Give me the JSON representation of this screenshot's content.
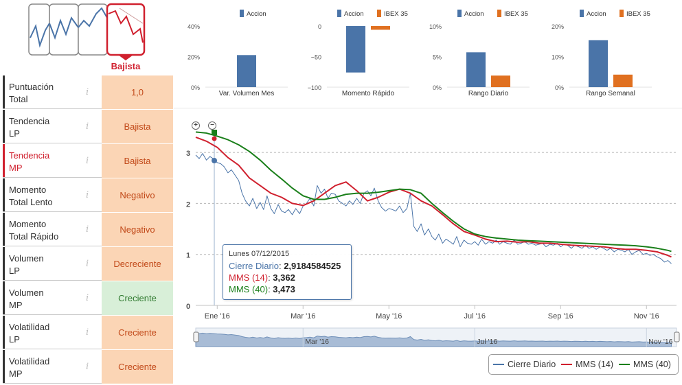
{
  "colors": {
    "accion": "#4a74a8",
    "ibex": "#e07020",
    "red": "#d0202e",
    "green": "#1a7f1a",
    "negative_bg": "#fbd5b5",
    "positive_bg": "#d8efd8"
  },
  "trend_selector": {
    "active_label": "Bajista",
    "icons": [
      "trend-up-icon",
      "trend-zigzag-icon",
      "trend-flat-icon",
      "trend-down-icon"
    ]
  },
  "metrics": [
    {
      "label_line1": "Puntuación",
      "label_line2": "Total",
      "value": "1,0",
      "tone": "negative",
      "active": false
    },
    {
      "label_line1": "Tendencia",
      "label_line2": "LP",
      "value": "Bajista",
      "tone": "negative",
      "active": false
    },
    {
      "label_line1": "Tendencia",
      "label_line2": "MP",
      "value": "Bajista",
      "tone": "negative",
      "active": true
    },
    {
      "label_line1": "Momento",
      "label_line2": "Total Lento",
      "value": "Negativo",
      "tone": "negative",
      "active": false
    },
    {
      "label_line1": "Momento",
      "label_line2": "Total Rápido",
      "value": "Negativo",
      "tone": "negative",
      "active": false
    },
    {
      "label_line1": "Volumen",
      "label_line2": "LP",
      "value": "Decreciente",
      "tone": "negative",
      "active": false
    },
    {
      "label_line1": "Volumen",
      "label_line2": "MP",
      "value": "Creciente",
      "tone": "positive",
      "active": false
    },
    {
      "label_line1": "Volatilidad",
      "label_line2": "LP",
      "value": "Creciente",
      "tone": "negative",
      "active": false
    },
    {
      "label_line1": "Volatilidad",
      "label_line2": "MP",
      "value": "Creciente",
      "tone": "negative",
      "active": false
    }
  ],
  "tooltip": {
    "date": "Lunes 07/12/2015",
    "cierre_label": "Cierre Diario",
    "cierre_value": "2,9184584525",
    "mms14_label": "MMS (14)",
    "mms14_value": "3,362",
    "mms40_label": "MMS (40)",
    "mms40_value": "3,473"
  },
  "legend": {
    "items": [
      {
        "label": "Cierre Diario",
        "color": "#4a74a8"
      },
      {
        "label": "MMS (14)",
        "color": "#d0202e"
      },
      {
        "label": "MMS (40)",
        "color": "#1a7f1a"
      }
    ]
  },
  "chart_data": [
    {
      "type": "bar",
      "title": "Var. Volumen Mes",
      "legend": [
        "Accion"
      ],
      "yticks": [
        "40%",
        "20%",
        "0%"
      ],
      "ylim": [
        0,
        40
      ],
      "series": [
        {
          "name": "Accion",
          "values": [
            21
          ]
        }
      ]
    },
    {
      "type": "bar",
      "title": "Momento Rápido",
      "legend": [
        "Accion",
        "IBEX 35"
      ],
      "yticks": [
        "0",
        "−50",
        "−100"
      ],
      "ylim": [
        -100,
        0
      ],
      "series": [
        {
          "name": "Accion",
          "values": [
            -76
          ]
        },
        {
          "name": "IBEX 35",
          "values": [
            -6
          ]
        }
      ]
    },
    {
      "type": "bar",
      "title": "Rango Diario",
      "legend": [
        "Accion",
        "IBEX 35"
      ],
      "yticks": [
        "10%",
        "5%",
        "0%"
      ],
      "ylim": [
        0,
        10
      ],
      "series": [
        {
          "name": "Accion",
          "values": [
            5.7
          ]
        },
        {
          "name": "IBEX 35",
          "values": [
            1.9
          ]
        }
      ]
    },
    {
      "type": "bar",
      "title": "Rango Semanal",
      "legend": [
        "Accion",
        "IBEX 35"
      ],
      "yticks": [
        "20%",
        "10%",
        "0%"
      ],
      "ylim": [
        0,
        20
      ],
      "series": [
        {
          "name": "Accion",
          "values": [
            15.4
          ]
        },
        {
          "name": "IBEX 35",
          "values": [
            4.1
          ]
        }
      ]
    },
    {
      "type": "line",
      "title": "",
      "xlabel": "",
      "ylabel": "",
      "ylim": [
        0,
        3.5
      ],
      "yticks": [
        "3",
        "2",
        "1",
        "0"
      ],
      "x_ticks": [
        "Ene '16",
        "Mar '16",
        "May '16",
        "Jul '16",
        "Sep '16",
        "Nov '16"
      ],
      "x_ticks_pos": [
        1,
        3,
        5,
        7,
        9,
        11
      ],
      "x_range": [
        0.5,
        11.7
      ],
      "navigator_labels": [
        "Mar '16",
        "Jul '16",
        "Nov '16"
      ],
      "navigator_labels_pos": [
        3,
        7,
        11
      ],
      "series": [
        {
          "name": "Cierre Diario",
          "x": [
            0.5,
            0.58,
            0.66,
            0.75,
            0.83,
            0.92,
            1.0,
            1.08,
            1.16,
            1.25,
            1.33,
            1.42,
            1.5,
            1.58,
            1.66,
            1.75,
            1.83,
            1.92,
            2.0,
            2.08,
            2.16,
            2.25,
            2.33,
            2.42,
            2.5,
            2.58,
            2.66,
            2.75,
            2.83,
            2.92,
            3.0,
            3.08,
            3.16,
            3.25,
            3.33,
            3.42,
            3.5,
            3.58,
            3.66,
            3.75,
            3.83,
            3.92,
            4.0,
            4.08,
            4.16,
            4.25,
            4.33,
            4.42,
            4.5,
            4.58,
            4.66,
            4.75,
            4.83,
            4.92,
            5.0,
            5.08,
            5.16,
            5.25,
            5.33,
            5.42,
            5.5,
            5.58,
            5.66,
            5.75,
            5.83,
            5.92,
            6.0,
            6.08,
            6.16,
            6.25,
            6.33,
            6.42,
            6.5,
            6.58,
            6.66,
            6.75,
            6.83,
            6.92,
            7.0,
            7.08,
            7.16,
            7.25,
            7.33,
            7.42,
            7.5,
            7.58,
            7.66,
            7.75,
            7.83,
            7.92,
            8.0,
            8.08,
            8.16,
            8.25,
            8.33,
            8.42,
            8.5,
            8.58,
            8.66,
            8.75,
            8.83,
            8.92,
            9.0,
            9.08,
            9.16,
            9.25,
            9.33,
            9.42,
            9.5,
            9.58,
            9.66,
            9.75,
            9.83,
            9.92,
            10.0,
            10.08,
            10.16,
            10.25,
            10.33,
            10.42,
            10.5,
            10.58,
            10.66,
            10.75,
            10.83,
            10.92,
            11.0,
            11.08,
            11.16,
            11.25,
            11.33,
            11.42,
            11.5,
            11.58
          ],
          "y": [
            2.95,
            2.88,
            2.98,
            2.85,
            2.92,
            2.87,
            2.8,
            2.78,
            2.72,
            2.6,
            2.66,
            2.55,
            2.45,
            2.2,
            2.05,
            1.95,
            2.1,
            1.9,
            2.02,
            1.88,
            2.15,
            1.9,
            1.8,
            1.98,
            1.85,
            1.82,
            1.88,
            1.78,
            1.9,
            1.8,
            1.95,
            2.0,
            2.1,
            1.95,
            2.35,
            2.2,
            2.28,
            2.1,
            2.2,
            2.18,
            2.05,
            2.0,
            1.95,
            2.05,
            1.98,
            2.1,
            2.0,
            2.2,
            2.25,
            2.15,
            2.3,
            2.05,
            1.92,
            1.85,
            1.9,
            1.88,
            1.85,
            1.95,
            1.82,
            1.9,
            2.2,
            1.55,
            1.45,
            1.6,
            1.38,
            1.5,
            1.35,
            1.28,
            1.4,
            1.22,
            1.3,
            1.25,
            1.2,
            1.35,
            1.15,
            1.28,
            1.22,
            1.2,
            1.25,
            1.18,
            1.3,
            1.2,
            1.25,
            1.22,
            1.28,
            1.2,
            1.25,
            1.22,
            1.2,
            1.28,
            1.2,
            1.22,
            1.25,
            1.2,
            1.22,
            1.18,
            1.2,
            1.22,
            1.15,
            1.2,
            1.18,
            1.22,
            1.15,
            1.2,
            1.18,
            1.12,
            1.18,
            1.15,
            1.12,
            1.18,
            1.12,
            1.15,
            1.1,
            1.15,
            1.12,
            1.08,
            1.12,
            1.05,
            1.1,
            1.08,
            1.05,
            1.1,
            1.0,
            1.05,
            1.08,
            1.0,
            1.02,
            0.98,
            1.0,
            0.95,
            0.92,
            0.85,
            0.88,
            0.82
          ]
        },
        {
          "name": "MMS (14)",
          "x": [
            0.5,
            0.75,
            1.0,
            1.25,
            1.5,
            1.75,
            2.0,
            2.25,
            2.5,
            2.75,
            3.0,
            3.25,
            3.5,
            3.75,
            4.0,
            4.25,
            4.5,
            4.75,
            5.0,
            5.25,
            5.5,
            5.75,
            6.0,
            6.25,
            6.5,
            6.75,
            7.0,
            7.25,
            7.5,
            7.75,
            8.0,
            8.25,
            8.5,
            8.75,
            9.0,
            9.25,
            9.5,
            9.75,
            10.0,
            10.25,
            10.5,
            10.75,
            11.0,
            11.25,
            11.5,
            11.58
          ],
          "y": [
            3.3,
            3.22,
            3.1,
            2.9,
            2.75,
            2.5,
            2.35,
            2.2,
            2.12,
            2.0,
            1.96,
            2.05,
            2.2,
            2.35,
            2.42,
            2.25,
            2.05,
            2.12,
            2.22,
            2.28,
            2.2,
            2.05,
            1.95,
            1.78,
            1.6,
            1.45,
            1.38,
            1.3,
            1.25,
            1.26,
            1.24,
            1.25,
            1.22,
            1.22,
            1.2,
            1.18,
            1.17,
            1.16,
            1.15,
            1.12,
            1.1,
            1.1,
            1.08,
            1.05,
            0.98,
            0.95
          ]
        },
        {
          "name": "MMS (40)",
          "x": [
            0.5,
            0.75,
            1.0,
            1.25,
            1.5,
            1.75,
            2.0,
            2.25,
            2.5,
            2.75,
            3.0,
            3.25,
            3.5,
            3.75,
            4.0,
            4.25,
            4.5,
            4.75,
            5.0,
            5.25,
            5.5,
            5.75,
            6.0,
            6.25,
            6.5,
            6.75,
            7.0,
            7.25,
            7.5,
            7.75,
            8.0,
            8.25,
            8.5,
            8.75,
            9.0,
            9.25,
            9.5,
            9.75,
            10.0,
            10.25,
            10.5,
            10.75,
            11.0,
            11.25,
            11.5,
            11.58
          ],
          "y": [
            3.4,
            3.38,
            3.32,
            3.25,
            3.15,
            3.02,
            2.85,
            2.65,
            2.48,
            2.3,
            2.15,
            2.08,
            2.08,
            2.12,
            2.18,
            2.2,
            2.2,
            2.22,
            2.25,
            2.28,
            2.27,
            2.2,
            2.0,
            1.82,
            1.65,
            1.5,
            1.4,
            1.35,
            1.32,
            1.3,
            1.28,
            1.27,
            1.26,
            1.25,
            1.24,
            1.23,
            1.22,
            1.21,
            1.2,
            1.19,
            1.18,
            1.17,
            1.15,
            1.12,
            1.08,
            1.06
          ]
        }
      ]
    }
  ]
}
